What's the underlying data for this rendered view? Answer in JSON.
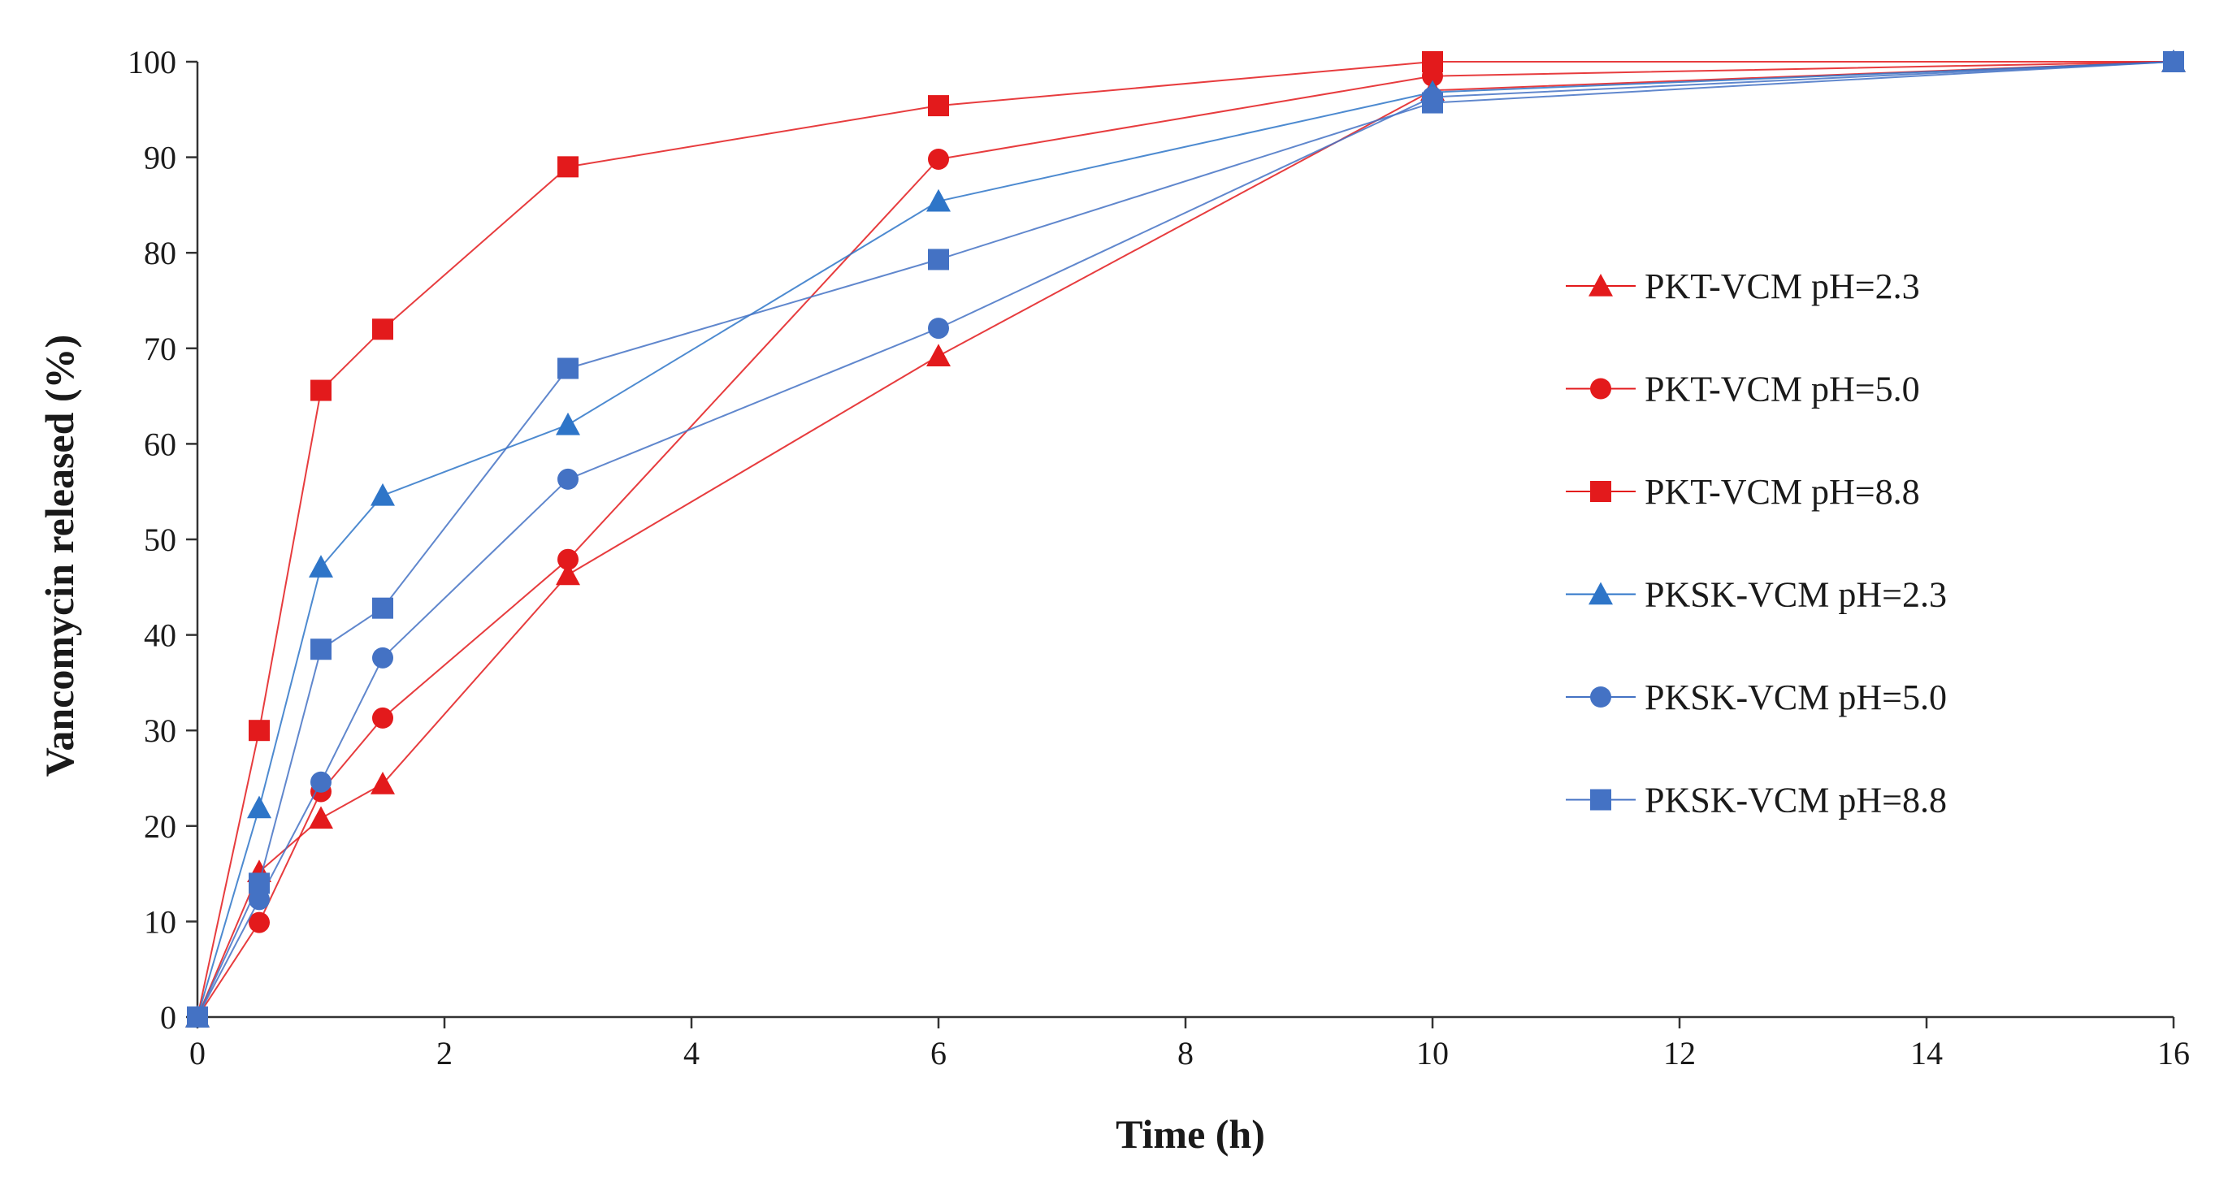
{
  "chart_data": {
    "type": "line",
    "title": "",
    "xlabel": "Time (h)",
    "ylabel": "Vancomycin released (%)",
    "xlim": [
      0,
      16
    ],
    "ylim": [
      0,
      100
    ],
    "xticks": [
      0,
      2,
      4,
      6,
      8,
      10,
      12,
      14,
      16
    ],
    "yticks": [
      0,
      10,
      20,
      30,
      40,
      50,
      60,
      70,
      80,
      90,
      100
    ],
    "grid": false,
    "legend_position": "right",
    "x": [
      0,
      0.5,
      1,
      1.5,
      3,
      6,
      10,
      16
    ],
    "series": [
      {
        "name": "PKT-VCM pH=2.3",
        "color": "#e31a1c",
        "marker": "triangle",
        "values": [
          0,
          15.2,
          20.8,
          24.4,
          46.3,
          69.2,
          97.0,
          100
        ]
      },
      {
        "name": "PKT-VCM pH=5.0",
        "color": "#e31a1c",
        "marker": "circle",
        "values": [
          0,
          9.9,
          23.6,
          31.3,
          47.9,
          89.8,
          98.5,
          100
        ]
      },
      {
        "name": "PKT-VCM pH=8.8",
        "color": "#e31a1c",
        "marker": "square",
        "values": [
          0,
          30.0,
          65.6,
          72.0,
          89.0,
          95.4,
          100,
          100
        ]
      },
      {
        "name": "PKSK-VCM pH=2.3",
        "color": "#2e75c8",
        "marker": "triangle",
        "values": [
          0,
          21.9,
          47.1,
          54.6,
          62.0,
          85.4,
          96.8,
          100
        ]
      },
      {
        "name": "PKSK-VCM pH=5.0",
        "color": "#4472c4",
        "marker": "circle",
        "values": [
          0,
          12.3,
          24.6,
          37.6,
          56.3,
          72.1,
          96.3,
          100
        ]
      },
      {
        "name": "PKSK-VCM pH=8.8",
        "color": "#4472c4",
        "marker": "square",
        "values": [
          0,
          14.0,
          38.5,
          42.8,
          67.9,
          79.3,
          95.7,
          100
        ]
      }
    ]
  }
}
